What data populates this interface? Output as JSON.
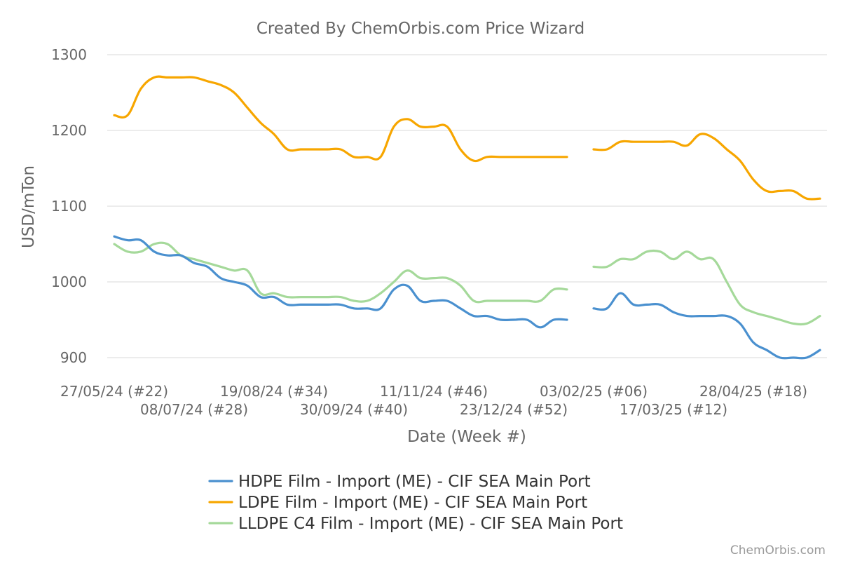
{
  "chart_data": {
    "type": "line",
    "title": "Created By ChemOrbis.com Price Wizard",
    "xlabel": "Date (Week #)",
    "ylabel": "USD/mTon",
    "ylim": [
      870,
      1300
    ],
    "yticks": [
      900,
      1000,
      1100,
      1200,
      1300
    ],
    "week_range": [
      0,
      49
    ],
    "x_tick_labels": [
      {
        "week": 0,
        "label": "27/05/24 (#22)"
      },
      {
        "week": 6,
        "label": "08/07/24 (#28)"
      },
      {
        "week": 12,
        "label": "19/08/24 (#34)"
      },
      {
        "week": 18,
        "label": "30/09/24 (#40)"
      },
      {
        "week": 24,
        "label": "11/11/24 (#46)"
      },
      {
        "week": 30,
        "label": "23/12/24 (#52)"
      },
      {
        "week": 36,
        "label": "03/02/25 (#06)"
      },
      {
        "week": 42,
        "label": "17/03/25 (#12)"
      },
      {
        "week": 48,
        "label": "28/04/25 (#18)"
      }
    ],
    "grid": true,
    "legend_position": "bottom",
    "series": [
      {
        "name": "HDPE Film - Import (ME) - CIF SEA Main Port",
        "color": "#4a90cf",
        "segments": [
          [
            [
              0,
              1060
            ],
            [
              1,
              1055
            ],
            [
              2,
              1055
            ],
            [
              3,
              1040
            ],
            [
              4,
              1035
            ],
            [
              5,
              1035
            ],
            [
              6,
              1025
            ],
            [
              7,
              1020
            ],
            [
              8,
              1005
            ],
            [
              9,
              1000
            ],
            [
              10,
              995
            ],
            [
              11,
              980
            ],
            [
              12,
              980
            ],
            [
              13,
              970
            ],
            [
              14,
              970
            ],
            [
              15,
              970
            ],
            [
              16,
              970
            ],
            [
              17,
              970
            ],
            [
              18,
              965
            ],
            [
              19,
              965
            ],
            [
              20,
              965
            ],
            [
              21,
              990
            ],
            [
              22,
              995
            ],
            [
              23,
              975
            ],
            [
              24,
              975
            ],
            [
              25,
              975
            ],
            [
              26,
              965
            ],
            [
              27,
              955
            ],
            [
              28,
              955
            ],
            [
              29,
              950
            ],
            [
              30,
              950
            ],
            [
              31,
              950
            ],
            [
              32,
              940
            ],
            [
              33,
              950
            ],
            [
              34,
              950
            ]
          ],
          [
            [
              36,
              965
            ],
            [
              37,
              965
            ],
            [
              38,
              985
            ],
            [
              39,
              970
            ],
            [
              40,
              970
            ],
            [
              41,
              970
            ],
            [
              42,
              960
            ],
            [
              43,
              955
            ],
            [
              44,
              955
            ],
            [
              45,
              955
            ],
            [
              46,
              955
            ],
            [
              47,
              945
            ],
            [
              48,
              920
            ],
            [
              49,
              910
            ],
            [
              50,
              900
            ],
            [
              51,
              900
            ],
            [
              52,
              900
            ],
            [
              53,
              910
            ]
          ]
        ]
      },
      {
        "name": "LDPE Film - Import (ME) - CIF SEA Main Port",
        "color": "#f7a600",
        "segments": [
          [
            [
              0,
              1220
            ],
            [
              1,
              1220
            ],
            [
              2,
              1255
            ],
            [
              3,
              1270
            ],
            [
              4,
              1270
            ],
            [
              5,
              1270
            ],
            [
              6,
              1270
            ],
            [
              7,
              1265
            ],
            [
              8,
              1260
            ],
            [
              9,
              1250
            ],
            [
              10,
              1230
            ],
            [
              11,
              1210
            ],
            [
              12,
              1195
            ],
            [
              13,
              1175
            ],
            [
              14,
              1175
            ],
            [
              15,
              1175
            ],
            [
              16,
              1175
            ],
            [
              17,
              1175
            ],
            [
              18,
              1165
            ],
            [
              19,
              1165
            ],
            [
              20,
              1165
            ],
            [
              21,
              1205
            ],
            [
              22,
              1215
            ],
            [
              23,
              1205
            ],
            [
              24,
              1205
            ],
            [
              25,
              1205
            ],
            [
              26,
              1175
            ],
            [
              27,
              1160
            ],
            [
              28,
              1165
            ],
            [
              29,
              1165
            ],
            [
              30,
              1165
            ],
            [
              31,
              1165
            ],
            [
              32,
              1165
            ],
            [
              33,
              1165
            ],
            [
              34,
              1165
            ]
          ],
          [
            [
              36,
              1175
            ],
            [
              37,
              1175
            ],
            [
              38,
              1185
            ],
            [
              39,
              1185
            ],
            [
              40,
              1185
            ],
            [
              41,
              1185
            ],
            [
              42,
              1185
            ],
            [
              43,
              1180
            ],
            [
              44,
              1195
            ],
            [
              45,
              1190
            ],
            [
              46,
              1175
            ],
            [
              47,
              1160
            ],
            [
              48,
              1135
            ],
            [
              49,
              1120
            ],
            [
              50,
              1120
            ],
            [
              51,
              1120
            ],
            [
              52,
              1110
            ],
            [
              53,
              1110
            ]
          ]
        ]
      },
      {
        "name": "LLDPE C4 Film - Import (ME) - CIF SEA Main Port",
        "color": "#a5d99a",
        "segments": [
          [
            [
              0,
              1050
            ],
            [
              1,
              1040
            ],
            [
              2,
              1040
            ],
            [
              3,
              1050
            ],
            [
              4,
              1050
            ],
            [
              5,
              1035
            ],
            [
              6,
              1030
            ],
            [
              7,
              1025
            ],
            [
              8,
              1020
            ],
            [
              9,
              1015
            ],
            [
              10,
              1015
            ],
            [
              11,
              985
            ],
            [
              12,
              985
            ],
            [
              13,
              980
            ],
            [
              14,
              980
            ],
            [
              15,
              980
            ],
            [
              16,
              980
            ],
            [
              17,
              980
            ],
            [
              18,
              975
            ],
            [
              19,
              975
            ],
            [
              20,
              985
            ],
            [
              21,
              1000
            ],
            [
              22,
              1015
            ],
            [
              23,
              1005
            ],
            [
              24,
              1005
            ],
            [
              25,
              1005
            ],
            [
              26,
              995
            ],
            [
              27,
              975
            ],
            [
              28,
              975
            ],
            [
              29,
              975
            ],
            [
              30,
              975
            ],
            [
              31,
              975
            ],
            [
              32,
              975
            ],
            [
              33,
              990
            ],
            [
              34,
              990
            ]
          ],
          [
            [
              36,
              1020
            ],
            [
              37,
              1020
            ],
            [
              38,
              1030
            ],
            [
              39,
              1030
            ],
            [
              40,
              1040
            ],
            [
              41,
              1040
            ],
            [
              42,
              1030
            ],
            [
              43,
              1040
            ],
            [
              44,
              1030
            ],
            [
              45,
              1030
            ],
            [
              46,
              1000
            ],
            [
              47,
              970
            ],
            [
              48,
              960
            ],
            [
              49,
              955
            ],
            [
              50,
              950
            ],
            [
              51,
              945
            ],
            [
              52,
              945
            ],
            [
              53,
              955
            ]
          ]
        ]
      }
    ]
  },
  "credit": "ChemOrbis.com"
}
